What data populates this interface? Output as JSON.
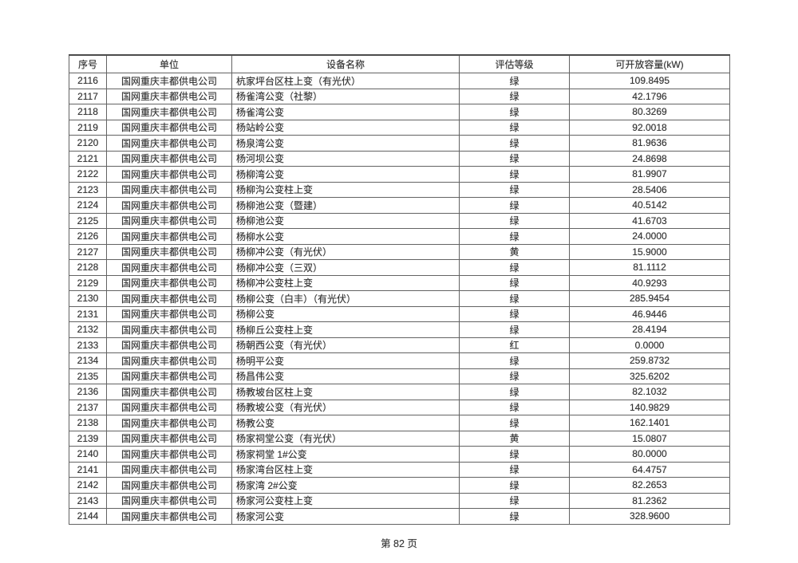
{
  "page": {
    "footer": "第 82 页"
  },
  "table": {
    "headers": [
      "序号",
      "单位",
      "设备名称",
      "评估等级",
      "可开放容量(kW)"
    ],
    "rows": [
      [
        "2116",
        "国网重庆丰都供电公司",
        "杭家坪台区柱上变（有光伏）",
        "绿",
        "109.8495"
      ],
      [
        "2117",
        "国网重庆丰都供电公司",
        "杨雀湾公变（社黎）",
        "绿",
        "42.1796"
      ],
      [
        "2118",
        "国网重庆丰都供电公司",
        "杨雀湾公变",
        "绿",
        "80.3269"
      ],
      [
        "2119",
        "国网重庆丰都供电公司",
        "杨站岭公变",
        "绿",
        "92.0018"
      ],
      [
        "2120",
        "国网重庆丰都供电公司",
        "杨泉湾公变",
        "绿",
        "81.9636"
      ],
      [
        "2121",
        "国网重庆丰都供电公司",
        "杨河坝公变",
        "绿",
        "24.8698"
      ],
      [
        "2122",
        "国网重庆丰都供电公司",
        "杨柳湾公变",
        "绿",
        "81.9907"
      ],
      [
        "2123",
        "国网重庆丰都供电公司",
        "杨柳沟公变柱上变",
        "绿",
        "28.5406"
      ],
      [
        "2124",
        "国网重庆丰都供电公司",
        "杨柳池公变（暨建）",
        "绿",
        "40.5142"
      ],
      [
        "2125",
        "国网重庆丰都供电公司",
        "杨柳池公变",
        "绿",
        "41.6703"
      ],
      [
        "2126",
        "国网重庆丰都供电公司",
        "杨柳水公变",
        "绿",
        "24.0000"
      ],
      [
        "2127",
        "国网重庆丰都供电公司",
        "杨柳冲公变（有光伏）",
        "黄",
        "15.9000"
      ],
      [
        "2128",
        "国网重庆丰都供电公司",
        "杨柳冲公变（三双）",
        "绿",
        "81.1112"
      ],
      [
        "2129",
        "国网重庆丰都供电公司",
        "杨柳冲公变柱上变",
        "绿",
        "40.9293"
      ],
      [
        "2130",
        "国网重庆丰都供电公司",
        "杨柳公变（白丰）（有光伏）",
        "绿",
        "285.9454"
      ],
      [
        "2131",
        "国网重庆丰都供电公司",
        "杨柳公变",
        "绿",
        "46.9446"
      ],
      [
        "2132",
        "国网重庆丰都供电公司",
        "杨柳丘公变柱上变",
        "绿",
        "28.4194"
      ],
      [
        "2133",
        "国网重庆丰都供电公司",
        "杨朝西公变（有光伏）",
        "红",
        "0.0000"
      ],
      [
        "2134",
        "国网重庆丰都供电公司",
        "杨明平公变",
        "绿",
        "259.8732"
      ],
      [
        "2135",
        "国网重庆丰都供电公司",
        "杨昌伟公变",
        "绿",
        "325.6202"
      ],
      [
        "2136",
        "国网重庆丰都供电公司",
        "杨教坡台区柱上变",
        "绿",
        "82.1032"
      ],
      [
        "2137",
        "国网重庆丰都供电公司",
        "杨教坡公变（有光伏）",
        "绿",
        "140.9829"
      ],
      [
        "2138",
        "国网重庆丰都供电公司",
        "杨教公变",
        "绿",
        "162.1401"
      ],
      [
        "2139",
        "国网重庆丰都供电公司",
        "杨家祠堂公变（有光伏）",
        "黄",
        "15.0807"
      ],
      [
        "2140",
        "国网重庆丰都供电公司",
        "杨家祠堂 1#公变",
        "绿",
        "80.0000"
      ],
      [
        "2141",
        "国网重庆丰都供电公司",
        "杨家湾台区柱上变",
        "绿",
        "64.4757"
      ],
      [
        "2142",
        "国网重庆丰都供电公司",
        "杨家湾 2#公变",
        "绿",
        "82.2653"
      ],
      [
        "2143",
        "国网重庆丰都供电公司",
        "杨家河公变柱上变",
        "绿",
        "81.2362"
      ],
      [
        "2144",
        "国网重庆丰都供电公司",
        "杨家河公变",
        "绿",
        "328.9600"
      ]
    ]
  }
}
